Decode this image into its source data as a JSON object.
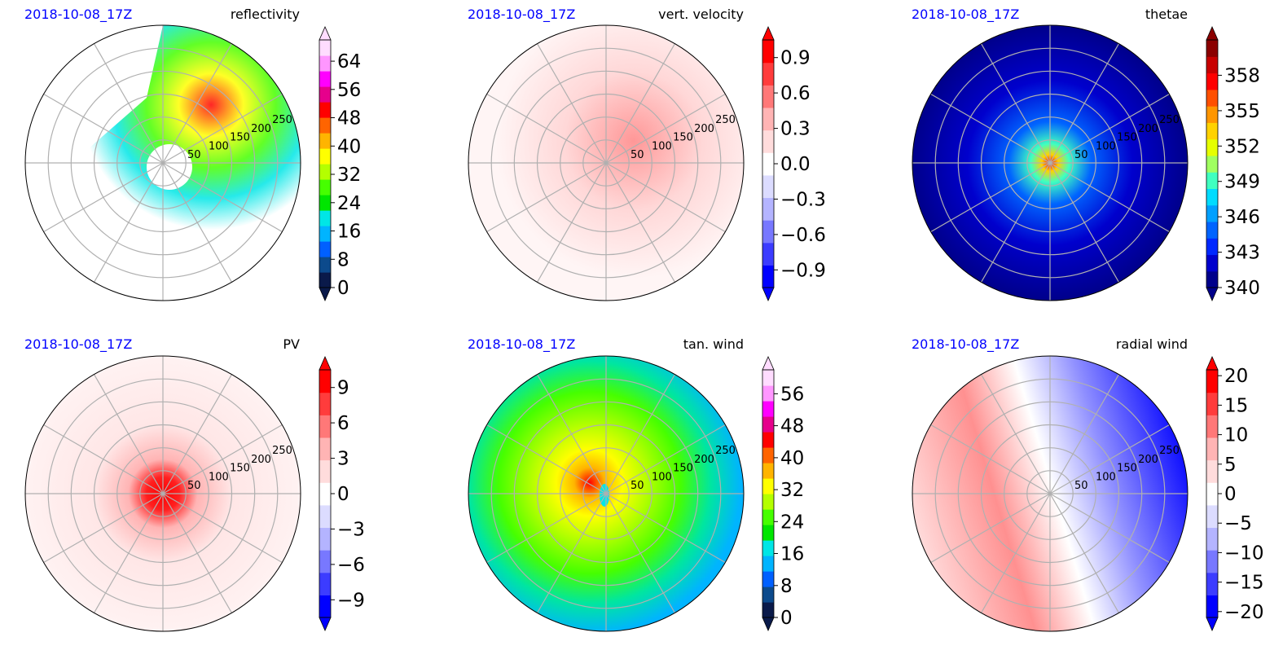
{
  "chart_data": [
    {
      "type": "heatmap",
      "title": "reflectivity",
      "date": "2018-10-08_17Z",
      "ring_labels": [
        "50",
        "100",
        "150",
        "200",
        "250"
      ],
      "colorbar": {
        "ticks": [
          "0",
          "8",
          "16",
          "24",
          "32",
          "40",
          "48",
          "56",
          "64"
        ],
        "range": [
          0,
          70
        ],
        "extend": "both",
        "colors": [
          "#0a1a4a",
          "#0c4a8c",
          "#0060ff",
          "#00b4ff",
          "#00e6e6",
          "#00e600",
          "#46ff00",
          "#b4ff00",
          "#ffff00",
          "#ffb400",
          "#ff6400",
          "#ff0000",
          "#e6008c",
          "#ff00ff",
          "#ff96ff",
          "#ffdcff"
        ]
      }
    },
    {
      "type": "heatmap",
      "title": "vert. velocity",
      "date": "2018-10-08_17Z",
      "ring_labels": [
        "50",
        "100",
        "150",
        "200",
        "250"
      ],
      "colorbar": {
        "ticks": [
          "−0.9",
          "−0.6",
          "−0.3",
          "0.0",
          "0.3",
          "0.6",
          "0.9"
        ],
        "range": [
          -1.05,
          1.05
        ],
        "extend": "both",
        "colors": [
          "#0000ff",
          "#3c3cff",
          "#7878ff",
          "#b4b4ff",
          "#dcdcff",
          "#ffffff",
          "#ffdcdc",
          "#ffb4b4",
          "#ff7878",
          "#ff3c3c",
          "#ff0000"
        ]
      }
    },
    {
      "type": "heatmap",
      "title": "thetae",
      "date": "2018-10-08_17Z",
      "ring_labels": [
        "50",
        "100",
        "150",
        "200",
        "250"
      ],
      "colorbar": {
        "ticks": [
          "340",
          "343",
          "346",
          "349",
          "352",
          "355",
          "358"
        ],
        "range": [
          340,
          361
        ],
        "extend": "both",
        "colors": [
          "#00008b",
          "#0000cd",
          "#0028ff",
          "#0064ff",
          "#00a0ff",
          "#00dcff",
          "#40ffc0",
          "#a0ff60",
          "#e6ff00",
          "#ffd200",
          "#ff9600",
          "#ff5000",
          "#ff0000",
          "#c80000",
          "#8b0000"
        ]
      }
    },
    {
      "type": "heatmap",
      "title": "PV",
      "date": "2018-10-08_17Z",
      "ring_labels": [
        "50",
        "100",
        "150",
        "200",
        "250"
      ],
      "colorbar": {
        "ticks": [
          "−9",
          "−6",
          "−3",
          "0",
          "3",
          "6",
          "9"
        ],
        "range": [
          -10.5,
          10.5
        ],
        "extend": "both",
        "colors": [
          "#0000ff",
          "#3c3cff",
          "#7878ff",
          "#b4b4ff",
          "#dcdcff",
          "#ffffff",
          "#ffdcdc",
          "#ffb4b4",
          "#ff7878",
          "#ff3c3c",
          "#ff0000"
        ]
      }
    },
    {
      "type": "heatmap",
      "title": "tan. wind",
      "date": "2018-10-08_17Z",
      "ring_labels": [
        "50",
        "100",
        "150",
        "200",
        "250"
      ],
      "colorbar": {
        "ticks": [
          "0",
          "8",
          "16",
          "24",
          "32",
          "40",
          "48",
          "56"
        ],
        "range": [
          0,
          62
        ],
        "extend": "both",
        "colors": [
          "#0a1a4a",
          "#0c4a8c",
          "#0060ff",
          "#00b4ff",
          "#00e6e6",
          "#00e600",
          "#46ff00",
          "#b4ff00",
          "#ffff00",
          "#ffb400",
          "#ff6400",
          "#ff0000",
          "#e6008c",
          "#ff00ff",
          "#ff96ff",
          "#ffdcff"
        ]
      }
    },
    {
      "type": "heatmap",
      "title": "radial wind",
      "date": "2018-10-08_17Z",
      "ring_labels": [
        "50",
        "100",
        "150",
        "200",
        "250"
      ],
      "colorbar": {
        "ticks": [
          "−20",
          "−15",
          "−10",
          "−5",
          "0",
          "5",
          "10",
          "15",
          "20"
        ],
        "range": [
          -21,
          21
        ],
        "extend": "both",
        "colors": [
          "#0000ff",
          "#3c3cff",
          "#7878ff",
          "#b4b4ff",
          "#dcdcff",
          "#ffffff",
          "#ffdcdc",
          "#ffb4b4",
          "#ff7878",
          "#ff3c3c",
          "#ff0000"
        ]
      }
    }
  ]
}
